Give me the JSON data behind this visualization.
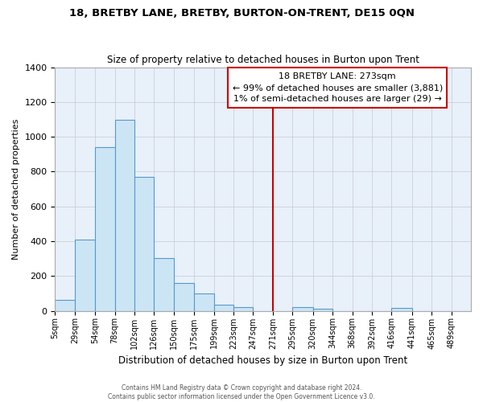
{
  "title": "18, BRETBY LANE, BRETBY, BURTON-ON-TRENT, DE15 0QN",
  "subtitle": "Size of property relative to detached houses in Burton upon Trent",
  "xlabel": "Distribution of detached houses by size in Burton upon Trent",
  "ylabel": "Number of detached properties",
  "footer1": "Contains HM Land Registry data © Crown copyright and database right 2024.",
  "footer2": "Contains public sector information licensed under the Open Government Licence v3.0.",
  "bin_labels": [
    "5sqm",
    "29sqm",
    "54sqm",
    "78sqm",
    "102sqm",
    "126sqm",
    "150sqm",
    "175sqm",
    "199sqm",
    "223sqm",
    "247sqm",
    "271sqm",
    "295sqm",
    "320sqm",
    "344sqm",
    "368sqm",
    "392sqm",
    "416sqm",
    "441sqm",
    "465sqm",
    "489sqm"
  ],
  "bin_starts": [
    5,
    29,
    54,
    78,
    102,
    126,
    150,
    175,
    199,
    223,
    247,
    271,
    295,
    320,
    344,
    368,
    392,
    416,
    441,
    465,
    489
  ],
  "bar_values": [
    65,
    410,
    940,
    1100,
    770,
    305,
    160,
    100,
    35,
    20,
    0,
    0,
    20,
    10,
    0,
    0,
    0,
    15,
    0,
    0,
    0
  ],
  "property_value": 271,
  "property_label": "18 BRETBY LANE: 273sqm",
  "annotation_line1": "← 99% of detached houses are smaller (3,881)",
  "annotation_line2": "1% of semi-detached houses are larger (29) →",
  "bar_color": "#cce5f5",
  "bar_edgecolor": "#5599cc",
  "vline_color": "#cc0000",
  "annotation_box_edgecolor": "#cc0000",
  "background_color": "#e8f0fa",
  "grid_color": "#c8c8d0",
  "ylim": [
    0,
    1400
  ],
  "yticks": [
    0,
    200,
    400,
    600,
    800,
    1000,
    1200,
    1400
  ],
  "xlim_left": 5,
  "xlim_right": 513
}
